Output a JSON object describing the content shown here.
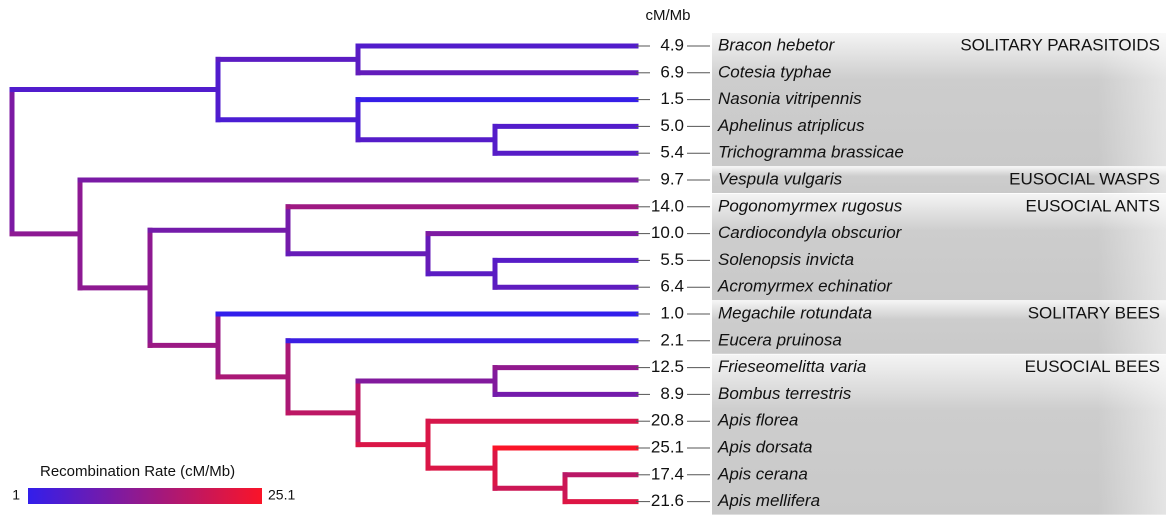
{
  "header": "cM/Mb",
  "taxa": [
    {
      "name": "Bracon hebetor",
      "rate": "4.9"
    },
    {
      "name": "Cotesia typhae",
      "rate": "6.9"
    },
    {
      "name": "Nasonia vitripennis",
      "rate": "1.5"
    },
    {
      "name": "Aphelinus atriplicus",
      "rate": "5.0"
    },
    {
      "name": "Trichogramma brassicae",
      "rate": "5.4"
    },
    {
      "name": "Vespula vulgaris",
      "rate": "9.7"
    },
    {
      "name": "Pogonomyrmex rugosus",
      "rate": "14.0"
    },
    {
      "name": "Cardiocondyla obscurior",
      "rate": "10.0"
    },
    {
      "name": "Solenopsis invicta",
      "rate": "5.5"
    },
    {
      "name": "Acromyrmex echinatior",
      "rate": "6.4"
    },
    {
      "name": "Megachile rotundata",
      "rate": "1.0"
    },
    {
      "name": "Eucera pruinosa",
      "rate": "2.1"
    },
    {
      "name": "Frieseomelitta varia",
      "rate": "12.5"
    },
    {
      "name": "Bombus terrestris",
      "rate": "8.9"
    },
    {
      "name": "Apis florea",
      "rate": "20.8"
    },
    {
      "name": "Apis dorsata",
      "rate": "25.1"
    },
    {
      "name": "Apis cerana",
      "rate": "17.4"
    },
    {
      "name": "Apis mellifera",
      "rate": "21.6"
    }
  ],
  "groups": [
    {
      "label": "SOLITARY PARASITOIDS",
      "first": 0,
      "last": 4
    },
    {
      "label": "EUSOCIAL WASPS",
      "first": 5,
      "last": 5
    },
    {
      "label": "EUSOCIAL ANTS",
      "first": 6,
      "last": 9
    },
    {
      "label": "SOLITARY BEES",
      "first": 10,
      "last": 11
    },
    {
      "label": "EUSOCIAL BEES",
      "first": 12,
      "last": 17
    }
  ],
  "legend": {
    "title": "Recombination Rate (cM/Mb)",
    "min": 1,
    "max": 25.1
  }
}
